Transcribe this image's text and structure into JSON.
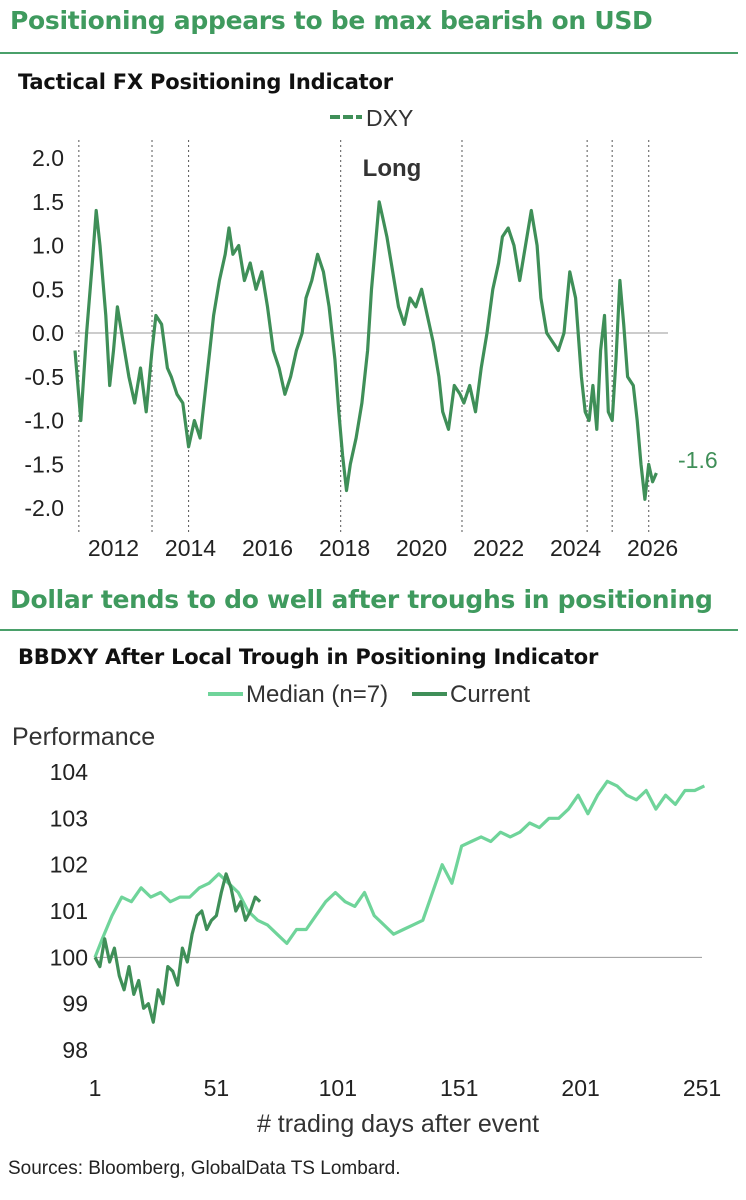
{
  "section1": {
    "heading": "Positioning appears to be max bearish on USD",
    "title": "Tactical FX Positioning Indicator",
    "legend": "DXY",
    "annotation": "Long",
    "last_value_label": "-1.6",
    "colors": {
      "line": "#3f8f58",
      "zero": "#999999",
      "vlines": "#555555"
    }
  },
  "section2": {
    "heading": "Dollar tends to do well after troughs in positioning",
    "title": "BBDXY After Local Trough in Positioning Indicator",
    "legend_median": "Median (n=7)",
    "legend_current": "Current",
    "ylabel": "Performance",
    "xlabel": "# trading days after event",
    "colors": {
      "median": "#6fd49a",
      "current": "#3f8f58",
      "baseline": "#999999"
    }
  },
  "footer": {
    "sources": "Sources: Bloomberg, GlobalData TS Lombard."
  },
  "chart_data": [
    {
      "type": "line",
      "title": "Tactical FX Positioning Indicator",
      "ylim": [
        -2.0,
        2.0
      ],
      "yticks": [
        "2.0",
        "1.5",
        "1.0",
        "0.5",
        "0.0",
        "-0.5",
        "-1.0",
        "-1.5",
        "-2.0"
      ],
      "xticks": [
        "2012",
        "2014",
        "2016",
        "2018",
        "2020",
        "2022",
        "2024",
        "2026"
      ],
      "xlim": [
        2011.0,
        2026.4
      ],
      "reference_line": 0,
      "vertical_event_lines": [
        2011.1,
        2013.0,
        2013.95,
        2017.9,
        2021.05,
        2024.3,
        2024.95,
        2025.9
      ],
      "series": [
        {
          "name": "DXY",
          "x": [
            2011.0,
            2011.15,
            2011.3,
            2011.45,
            2011.55,
            2011.65,
            2011.8,
            2011.9,
            2012.0,
            2012.1,
            2012.25,
            2012.4,
            2012.55,
            2012.7,
            2012.85,
            2013.0,
            2013.1,
            2013.25,
            2013.4,
            2013.5,
            2013.65,
            2013.8,
            2013.95,
            2014.1,
            2014.25,
            2014.4,
            2014.5,
            2014.6,
            2014.75,
            2014.9,
            2015.0,
            2015.1,
            2015.25,
            2015.4,
            2015.55,
            2015.7,
            2015.85,
            2016.0,
            2016.15,
            2016.3,
            2016.45,
            2016.6,
            2016.75,
            2016.9,
            2017.0,
            2017.15,
            2017.3,
            2017.45,
            2017.6,
            2017.75,
            2017.85,
            2017.95,
            2018.05,
            2018.15,
            2018.3,
            2018.45,
            2018.6,
            2018.7,
            2018.8,
            2018.9,
            2019.0,
            2019.1,
            2019.25,
            2019.4,
            2019.55,
            2019.7,
            2019.85,
            2020.0,
            2020.15,
            2020.3,
            2020.45,
            2020.55,
            2020.7,
            2020.85,
            2021.0,
            2021.1,
            2021.25,
            2021.4,
            2021.55,
            2021.7,
            2021.85,
            2022.0,
            2022.1,
            2022.25,
            2022.4,
            2022.55,
            2022.7,
            2022.85,
            2023.0,
            2023.1,
            2023.25,
            2023.4,
            2023.55,
            2023.7,
            2023.85,
            2024.0,
            2024.15,
            2024.25,
            2024.35,
            2024.45,
            2024.55,
            2024.65,
            2024.75,
            2024.85,
            2024.95,
            2025.05,
            2025.15,
            2025.25,
            2025.35,
            2025.5,
            2025.6,
            2025.7,
            2025.8,
            2025.9,
            2026.0,
            2026.1
          ],
          "y": [
            -0.2,
            -1.0,
            0.0,
            0.8,
            1.4,
            1.0,
            0.2,
            -0.6,
            -0.2,
            0.3,
            -0.1,
            -0.5,
            -0.8,
            -0.4,
            -0.9,
            -0.2,
            0.2,
            0.1,
            -0.4,
            -0.5,
            -0.7,
            -0.8,
            -1.3,
            -1.0,
            -1.2,
            -0.6,
            -0.2,
            0.2,
            0.6,
            0.9,
            1.2,
            0.9,
            1.0,
            0.6,
            0.8,
            0.5,
            0.7,
            0.3,
            -0.2,
            -0.4,
            -0.7,
            -0.5,
            -0.2,
            0.0,
            0.4,
            0.6,
            0.9,
            0.7,
            0.3,
            -0.3,
            -0.9,
            -1.4,
            -1.8,
            -1.5,
            -1.2,
            -0.8,
            -0.2,
            0.5,
            1.0,
            1.5,
            1.3,
            1.1,
            0.7,
            0.3,
            0.1,
            0.4,
            0.3,
            0.5,
            0.2,
            -0.1,
            -0.5,
            -0.9,
            -1.1,
            -0.6,
            -0.7,
            -0.8,
            -0.6,
            -0.9,
            -0.4,
            0.0,
            0.5,
            0.8,
            1.1,
            1.2,
            1.0,
            0.6,
            1.0,
            1.4,
            1.0,
            0.4,
            0.0,
            -0.1,
            -0.2,
            0.0,
            0.7,
            0.4,
            -0.5,
            -0.9,
            -1.0,
            -0.6,
            -1.1,
            -0.2,
            0.2,
            -0.9,
            -1.0,
            -0.3,
            0.6,
            0.1,
            -0.5,
            -0.6,
            -1.0,
            -1.5,
            -1.9,
            -1.5,
            -1.7,
            -1.6
          ]
        }
      ]
    },
    {
      "type": "line",
      "title": "BBDXY After Local Trough in Positioning Indicator",
      "xlabel": "# trading days after event",
      "ylabel": "Performance",
      "ylim": [
        98,
        104
      ],
      "yticks": [
        "104",
        "103",
        "102",
        "101",
        "100",
        "99",
        "98"
      ],
      "xticks": [
        "1",
        "51",
        "101",
        "151",
        "201",
        "251"
      ],
      "xlim": [
        1,
        251
      ],
      "reference_line": 100,
      "series": [
        {
          "name": "Median (n=7)",
          "x": [
            1,
            4,
            8,
            12,
            16,
            20,
            24,
            28,
            32,
            36,
            40,
            44,
            48,
            52,
            56,
            60,
            64,
            68,
            72,
            76,
            80,
            84,
            88,
            92,
            96,
            100,
            104,
            108,
            112,
            116,
            120,
            124,
            128,
            132,
            136,
            140,
            144,
            148,
            152,
            156,
            160,
            164,
            168,
            172,
            176,
            180,
            184,
            188,
            192,
            196,
            200,
            204,
            208,
            212,
            216,
            220,
            224,
            228,
            232,
            236,
            240,
            244,
            248,
            252
          ],
          "y": [
            100.0,
            100.4,
            100.9,
            101.3,
            101.2,
            101.5,
            101.3,
            101.4,
            101.2,
            101.3,
            101.3,
            101.5,
            101.6,
            101.8,
            101.6,
            101.4,
            101.0,
            100.8,
            100.7,
            100.5,
            100.3,
            100.6,
            100.6,
            100.9,
            101.2,
            101.4,
            101.2,
            101.1,
            101.4,
            100.9,
            100.7,
            100.5,
            100.6,
            100.7,
            100.8,
            101.4,
            102.0,
            101.6,
            102.4,
            102.5,
            102.6,
            102.5,
            102.7,
            102.6,
            102.7,
            102.9,
            102.8,
            103.0,
            103.0,
            103.2,
            103.5,
            103.1,
            103.5,
            103.8,
            103.7,
            103.5,
            103.4,
            103.6,
            103.2,
            103.5,
            103.3,
            103.6,
            103.6,
            103.7
          ]
        },
        {
          "name": "Current",
          "x": [
            1,
            3,
            5,
            7,
            9,
            11,
            13,
            15,
            17,
            19,
            21,
            23,
            25,
            27,
            29,
            31,
            33,
            35,
            37,
            39,
            41,
            43,
            45,
            47,
            49,
            51,
            53,
            55,
            57,
            59,
            61,
            63,
            65,
            67,
            69
          ],
          "y": [
            100.0,
            99.8,
            100.4,
            99.9,
            100.2,
            99.6,
            99.3,
            99.8,
            99.2,
            99.5,
            98.9,
            99.0,
            98.6,
            99.3,
            99.0,
            99.8,
            99.7,
            99.4,
            100.2,
            99.9,
            100.5,
            100.9,
            101.0,
            100.6,
            100.8,
            100.9,
            101.4,
            101.8,
            101.5,
            101.0,
            101.2,
            100.8,
            101.0,
            101.3,
            101.2
          ]
        }
      ]
    }
  ]
}
